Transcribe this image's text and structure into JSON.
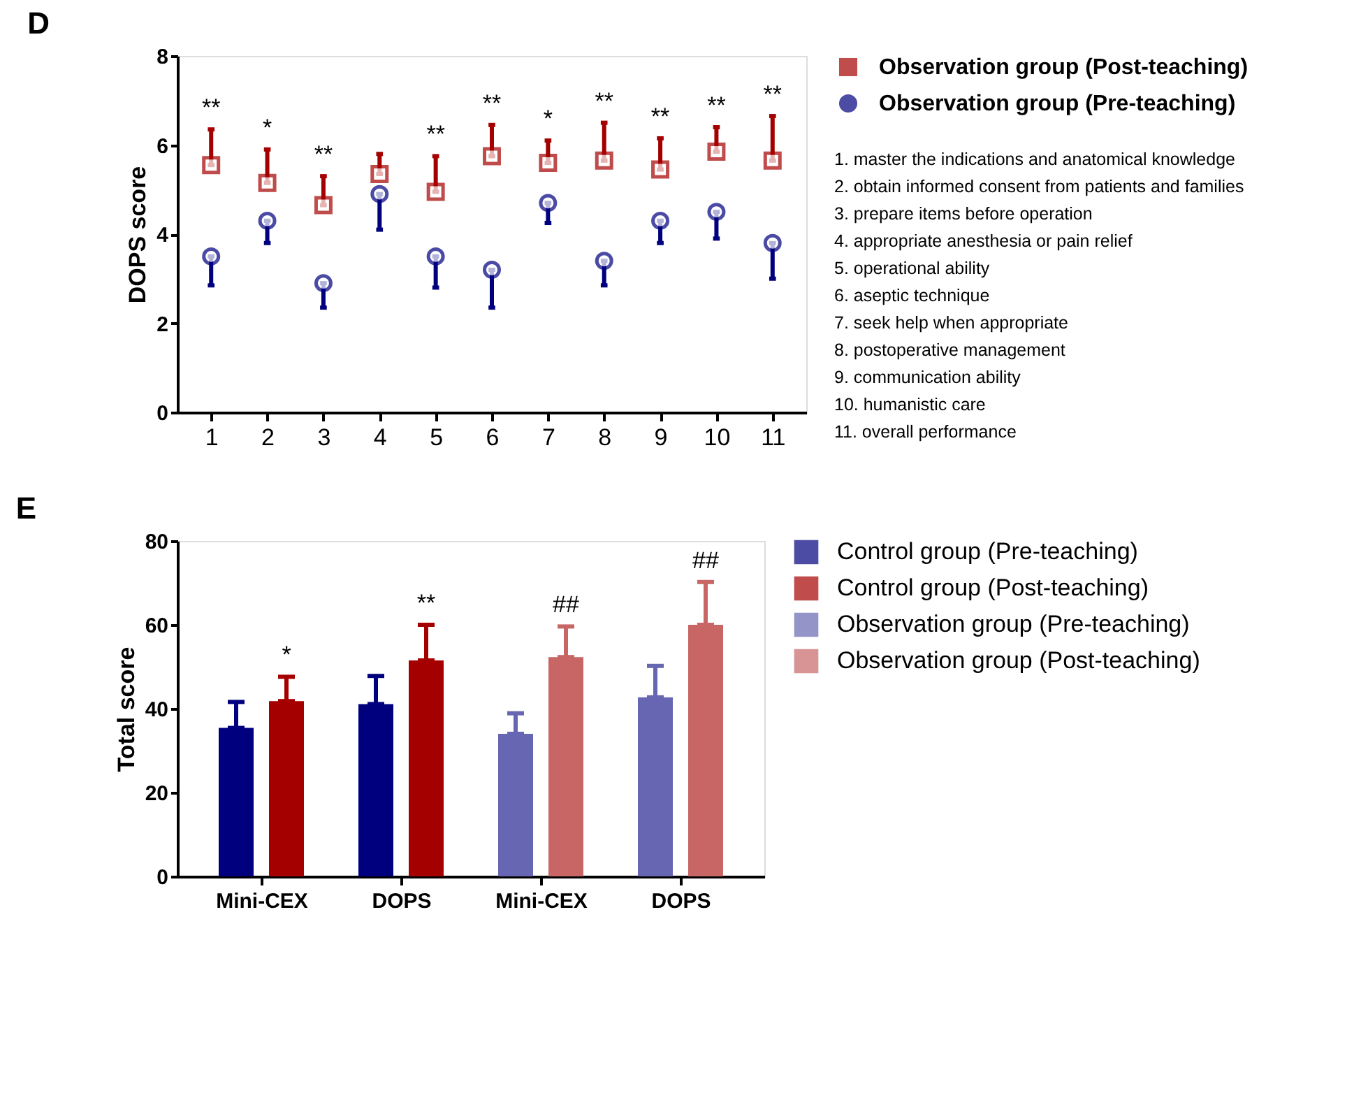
{
  "chart_data": [
    {
      "type": "scatter",
      "title": "D",
      "ylabel": "DOPS score",
      "categories": [
        "1",
        "2",
        "3",
        "4",
        "5",
        "6",
        "7",
        "8",
        "9",
        "10",
        "11"
      ],
      "ylim": [
        0,
        8
      ],
      "yticks": [
        0,
        2,
        4,
        6,
        8
      ],
      "grid": false,
      "legend": "top right",
      "series": [
        {
          "name": "Observation group (Post-teaching)",
          "color": "#a50000",
          "marker": "square",
          "values": [
            5.55,
            5.15,
            4.65,
            5.35,
            4.95,
            5.75,
            5.6,
            5.65,
            5.45,
            5.85,
            5.65
          ],
          "errors": [
            [
              5.55,
              6.35
            ],
            [
              5.15,
              5.9
            ],
            [
              4.65,
              5.3
            ],
            [
              5.35,
              5.8
            ],
            [
              4.95,
              5.75
            ],
            [
              5.75,
              6.45
            ],
            [
              5.6,
              6.1
            ],
            [
              5.65,
              6.5
            ],
            [
              5.45,
              6.15
            ],
            [
              5.85,
              6.4
            ],
            [
              5.65,
              6.65
            ]
          ],
          "value_labels": [
            "**",
            "*",
            "**",
            null,
            "**",
            "**",
            "*",
            "**",
            "**",
            "**",
            "**"
          ]
        },
        {
          "name": "Observation group (Pre-teaching)",
          "color": "#00007f",
          "marker": "circle",
          "values": [
            3.5,
            4.3,
            2.9,
            4.9,
            3.5,
            3.2,
            4.7,
            3.4,
            4.3,
            4.5,
            3.8
          ],
          "errors": [
            [
              2.85,
              3.5
            ],
            [
              3.8,
              4.3
            ],
            [
              2.35,
              2.9
            ],
            [
              4.1,
              4.9
            ],
            [
              2.8,
              3.5
            ],
            [
              2.35,
              3.2
            ],
            [
              4.25,
              4.7
            ],
            [
              2.85,
              3.4
            ],
            [
              3.8,
              4.3
            ],
            [
              3.9,
              4.5
            ],
            [
              3.0,
              3.8
            ]
          ]
        }
      ],
      "annotations": [
        "1. master the indications and anatomical knowledge",
        "2. obtain informed consent from patients and families",
        "3. prepare items before operation",
        "4. appropriate anesthesia or pain relief",
        "5. operational ability",
        "6. aseptic technique",
        "7. seek help when appropriate",
        "8. postoperative management",
        "9. communication ability",
        "10. humanistic care",
        "11. overall performance"
      ]
    },
    {
      "type": "bar",
      "title": "E",
      "ylabel": "Total score",
      "categories": [
        "Mini-CEX",
        "DOPS",
        "Mini-CEX",
        "DOPS"
      ],
      "ylim": [
        0,
        80
      ],
      "yticks": [
        0,
        20,
        40,
        60,
        80
      ],
      "grid": false,
      "legend": "top right",
      "series": [
        {
          "name": "Control group (Pre-teaching)",
          "color": "#00007f",
          "values": [
            35.4,
            41.1,
            null,
            null
          ],
          "errors": [
            [
              35.4,
              41.6
            ],
            [
              41.1,
              47.8
            ],
            null,
            null
          ]
        },
        {
          "name": "Control group (Post-teaching)",
          "color": "#a50000",
          "values": [
            41.8,
            51.5,
            null,
            null
          ],
          "errors": [
            [
              41.8,
              47.6
            ],
            [
              51.5,
              60.0
            ],
            null,
            null
          ],
          "value_labels": [
            "*",
            "**",
            null,
            null
          ]
        },
        {
          "name": "Observation group (Pre-teaching)",
          "color": "#6666b2",
          "values": [
            null,
            null,
            34.0,
            42.7
          ],
          "errors": [
            null,
            null,
            [
              34.0,
              38.9
            ],
            [
              42.7,
              50.2
            ]
          ]
        },
        {
          "name": "Observation group (Post-teaching)",
          "color": "#c86666",
          "values": [
            null,
            null,
            52.3,
            60.0
          ],
          "errors": [
            null,
            null,
            [
              52.3,
              59.6
            ],
            [
              60.0,
              70.2
            ]
          ],
          "value_labels": [
            null,
            null,
            "##",
            "##"
          ]
        }
      ]
    }
  ]
}
